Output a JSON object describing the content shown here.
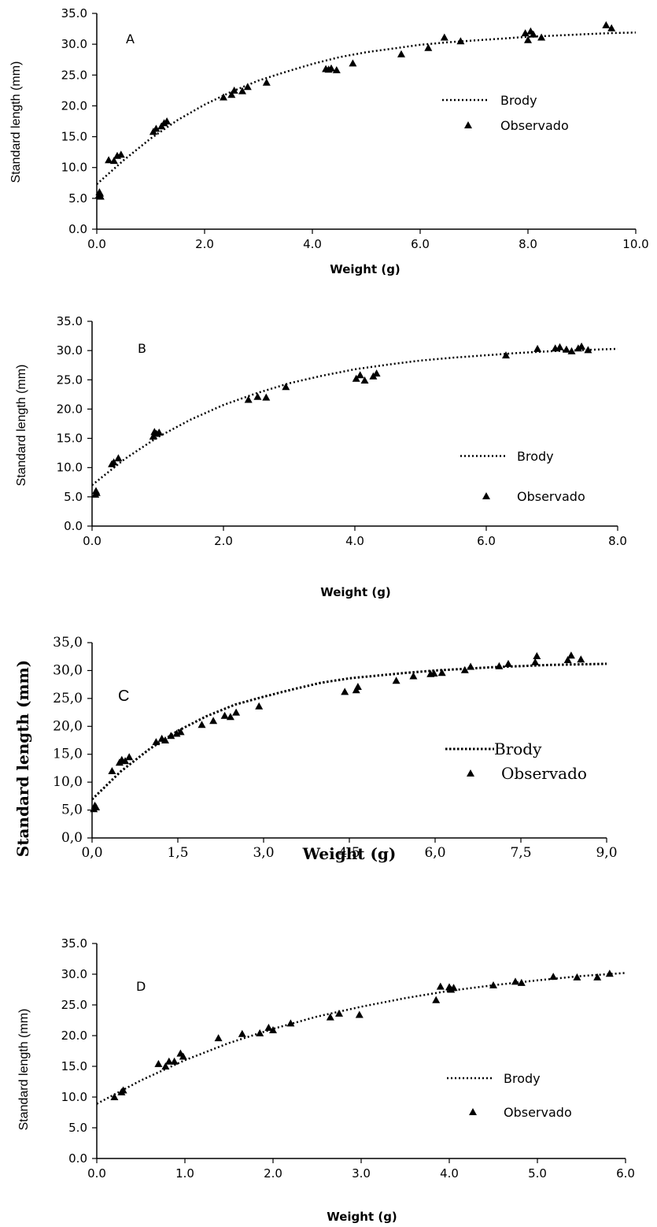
{
  "chart_data": [
    {
      "type": "scatter",
      "panel_label": "A",
      "xlabel": "Weight (g)",
      "ylabel": "Standard length (mm)",
      "xlim": [
        0,
        10
      ],
      "ylim": [
        0,
        35
      ],
      "x_ticks": [
        "0.0",
        "2.0",
        "4.0",
        "6.0",
        "8.0",
        "10.0"
      ],
      "y_ticks": [
        "0.0",
        "5.0",
        "10.0",
        "15.0",
        "20.0",
        "25.0",
        "30.0",
        "35.0"
      ],
      "legend": [
        "Brody",
        "Observado"
      ],
      "legend_position": "right",
      "series": [
        {
          "name": "Observado",
          "marker": "triangle",
          "x": [
            0.04,
            0.05,
            0.06,
            0.07,
            0.22,
            0.32,
            0.38,
            0.45,
            1.05,
            1.1,
            1.2,
            1.25,
            1.3,
            2.35,
            2.5,
            2.55,
            2.7,
            2.8,
            3.15,
            4.25,
            4.3,
            4.35,
            4.45,
            4.75,
            5.65,
            6.15,
            6.45,
            6.75,
            7.95,
            8.0,
            8.05,
            8.1,
            8.25,
            9.45,
            9.55
          ],
          "y": [
            5.5,
            6.0,
            5.8,
            5.3,
            11.2,
            11.1,
            11.9,
            12.1,
            15.8,
            16.3,
            16.7,
            17.2,
            17.5,
            21.4,
            21.8,
            22.5,
            22.4,
            23.1,
            23.8,
            26.0,
            25.9,
            26.1,
            25.8,
            26.9,
            28.4,
            29.4,
            31.1,
            30.5,
            31.8,
            30.7,
            32.1,
            31.6,
            31.1,
            33.1,
            32.6
          ]
        },
        {
          "name": "Brody",
          "line": "dotted",
          "x": [
            0,
            0.5,
            1,
            1.5,
            2,
            2.5,
            3,
            3.5,
            4,
            4.5,
            5,
            5.5,
            6,
            6.5,
            7,
            7.5,
            8,
            8.5,
            9,
            9.5,
            10
          ],
          "y": [
            7.3,
            11.2,
            14.7,
            17.7,
            20.2,
            22.3,
            24.1,
            25.5,
            26.8,
            27.9,
            28.7,
            29.3,
            29.9,
            30.3,
            30.6,
            30.9,
            31.2,
            31.4,
            31.6,
            31.8,
            31.9
          ]
        }
      ]
    },
    {
      "type": "scatter",
      "panel_label": "B",
      "xlabel": "Weight (g)",
      "ylabel": "Standard length (mm)",
      "xlim": [
        0,
        8
      ],
      "ylim": [
        0,
        35
      ],
      "x_ticks": [
        "0.0",
        "2.0",
        "4.0",
        "6.0",
        "8.0"
      ],
      "y_ticks": [
        "0.0",
        "5.0",
        "10.0",
        "15.0",
        "20.0",
        "25.0",
        "30.0",
        "35.0"
      ],
      "legend": [
        "Brody",
        "Observado"
      ],
      "legend_position": "right",
      "series": [
        {
          "name": "Observado",
          "marker": "triangle",
          "x": [
            0.05,
            0.06,
            0.07,
            0.3,
            0.33,
            0.4,
            0.93,
            0.95,
            0.98,
            1.02,
            2.38,
            2.52,
            2.65,
            2.95,
            4.02,
            4.08,
            4.15,
            4.28,
            4.33,
            6.3,
            6.78,
            7.05,
            7.12,
            7.22,
            7.3,
            7.4,
            7.45,
            7.55
          ],
          "y": [
            5.4,
            6.0,
            5.7,
            10.6,
            10.9,
            11.6,
            15.3,
            16.1,
            15.8,
            16.0,
            21.6,
            22.1,
            22.0,
            23.8,
            25.2,
            25.8,
            24.9,
            25.6,
            26.1,
            29.2,
            30.3,
            30.4,
            30.6,
            30.2,
            29.9,
            30.4,
            30.7,
            30.1
          ]
        },
        {
          "name": "Brody",
          "line": "dotted",
          "x": [
            0,
            0.5,
            1,
            1.5,
            2,
            2.5,
            3,
            3.5,
            4,
            4.5,
            5,
            5.5,
            6,
            6.5,
            7,
            7.5,
            8
          ],
          "y": [
            7.0,
            11.5,
            15.2,
            18.2,
            20.7,
            22.7,
            24.4,
            25.7,
            26.8,
            27.6,
            28.3,
            28.8,
            29.2,
            29.6,
            29.9,
            30.1,
            30.3
          ]
        }
      ]
    },
    {
      "type": "scatter",
      "panel_label": "C",
      "xlabel": "Weight  (g)",
      "ylabel": "Standard length (mm)",
      "xlim": [
        0,
        9
      ],
      "ylim": [
        0,
        35
      ],
      "x_ticks": [
        "0,0",
        "1,5",
        "3,0",
        "4,5",
        "6,0",
        "7,5",
        "9,0"
      ],
      "y_ticks": [
        "0,0",
        "5,0",
        "10,0",
        "15,0",
        "20,0",
        "25,0",
        "30,0",
        "35,0"
      ],
      "legend": [
        "Brody",
        "Observado"
      ],
      "legend_position": "right",
      "series": [
        {
          "name": "Observado",
          "marker": "triangle",
          "x": [
            0.03,
            0.05,
            0.07,
            0.35,
            0.48,
            0.52,
            0.58,
            0.65,
            1.12,
            1.22,
            1.28,
            1.38,
            1.48,
            1.55,
            1.92,
            2.12,
            2.32,
            2.42,
            2.52,
            2.92,
            4.42,
            4.62,
            4.65,
            5.32,
            5.62,
            5.92,
            5.98,
            6.12,
            6.52,
            6.62,
            7.12,
            7.28,
            7.75,
            7.78,
            8.32,
            8.38,
            8.55
          ],
          "y": [
            5.2,
            5.8,
            5.5,
            12.0,
            13.5,
            14.0,
            13.8,
            14.5,
            17.2,
            17.8,
            17.5,
            18.3,
            18.7,
            19.0,
            20.3,
            21.0,
            21.9,
            21.7,
            22.5,
            23.6,
            26.2,
            26.5,
            27.1,
            28.2,
            29.0,
            29.4,
            29.5,
            29.6,
            30.1,
            30.7,
            30.8,
            31.2,
            31.5,
            32.6,
            31.9,
            32.7,
            32.0
          ]
        },
        {
          "name": "Brody",
          "line": "dotted",
          "x": [
            0,
            0.5,
            1,
            1.5,
            2,
            2.5,
            3,
            3.5,
            4,
            4.5,
            5,
            5.5,
            6,
            6.5,
            7,
            7.5,
            8,
            8.5,
            9
          ],
          "y": [
            6.9,
            11.9,
            15.9,
            19.2,
            21.8,
            23.9,
            25.3,
            26.6,
            27.8,
            28.6,
            29.1,
            29.6,
            30.0,
            30.3,
            30.6,
            30.8,
            31.0,
            31.1,
            31.2
          ]
        }
      ]
    },
    {
      "type": "scatter",
      "panel_label": "D",
      "xlabel": "Weight  (g)",
      "ylabel": "Standard length (mm)",
      "xlim": [
        0,
        6
      ],
      "ylim": [
        0,
        35
      ],
      "x_ticks": [
        "0.0",
        "1.0",
        "2.0",
        "3.0",
        "4.0",
        "5.0",
        "6.0"
      ],
      "y_ticks": [
        "0.0",
        "5.0",
        "10.0",
        "15.0",
        "20.0",
        "25.0",
        "30.0",
        "35.0"
      ],
      "legend": [
        "Brody",
        "Observado"
      ],
      "legend_position": "right",
      "series": [
        {
          "name": "Observado",
          "marker": "triangle",
          "x": [
            0.2,
            0.28,
            0.3,
            0.7,
            0.78,
            0.82,
            0.88,
            0.95,
            0.98,
            1.38,
            1.65,
            1.85,
            1.95,
            2.0,
            2.2,
            2.65,
            2.75,
            2.98,
            3.85,
            3.9,
            4.0,
            4.02,
            4.05,
            4.5,
            4.75,
            4.82,
            5.18,
            5.45,
            5.68,
            5.82
          ],
          "y": [
            10.0,
            10.8,
            11.1,
            15.4,
            15.0,
            15.8,
            15.8,
            17.1,
            16.6,
            19.6,
            20.3,
            20.4,
            21.3,
            20.9,
            22.0,
            23.0,
            23.6,
            23.4,
            25.8,
            28.0,
            27.9,
            27.5,
            27.8,
            28.2,
            28.8,
            28.6,
            29.6,
            29.5,
            29.5,
            30.1
          ]
        },
        {
          "name": "Brody",
          "line": "dotted",
          "x": [
            0,
            0.5,
            1,
            1.5,
            2,
            2.5,
            3,
            3.5,
            4,
            4.5,
            5,
            5.5,
            6
          ],
          "y": [
            8.9,
            12.7,
            16.0,
            18.8,
            21.1,
            23.1,
            24.7,
            26.1,
            27.3,
            28.2,
            29.0,
            29.7,
            30.2
          ]
        }
      ]
    }
  ]
}
